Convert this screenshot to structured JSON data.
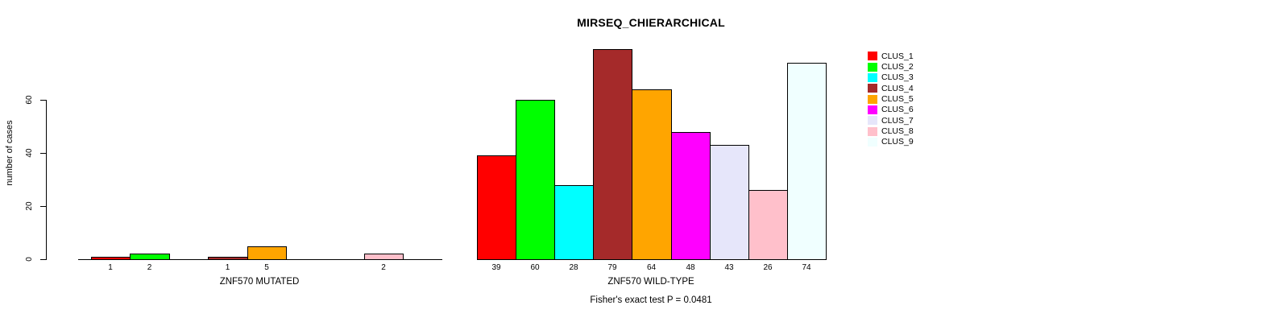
{
  "title": "MIRSEQ_CHIERARCHICAL",
  "ylabel": "number of cases",
  "footer": "Fisher's exact test P = 0.0481",
  "legend": {
    "position": "top-right",
    "entries": [
      {
        "label": "CLUS_1",
        "color": "#FF0000"
      },
      {
        "label": "CLUS_2",
        "color": "#00FF00"
      },
      {
        "label": "CLUS_3",
        "color": "#00FFFF"
      },
      {
        "label": "CLUS_4",
        "color": "#A52A2A"
      },
      {
        "label": "CLUS_5",
        "color": "#FFA500"
      },
      {
        "label": "CLUS_6",
        "color": "#FF00FF"
      },
      {
        "label": "CLUS_7",
        "color": "#E6E6FA"
      },
      {
        "label": "CLUS_8",
        "color": "#FFC0CB"
      },
      {
        "label": "CLUS_9",
        "color": "#F0FFFF"
      }
    ]
  },
  "chart_data": [
    {
      "type": "bar",
      "xlabel": "ZNF570 MUTATED",
      "ylabel": "number of cases",
      "categories": [
        "CLUS_1",
        "CLUS_2",
        "CLUS_3",
        "CLUS_4",
        "CLUS_5",
        "CLUS_6",
        "CLUS_7",
        "CLUS_8",
        "CLUS_9"
      ],
      "values": [
        1,
        2,
        0,
        1,
        5,
        0,
        0,
        2,
        0
      ],
      "bar_labels": [
        "1",
        "2",
        "",
        "1",
        "5",
        "",
        "",
        "2",
        ""
      ],
      "yticks": [
        0,
        20,
        40,
        60
      ],
      "ylim": [
        0,
        60
      ],
      "grid": false
    },
    {
      "type": "bar",
      "xlabel": "ZNF570 WILD-TYPE",
      "ylabel": "number of cases",
      "categories": [
        "CLUS_1",
        "CLUS_2",
        "CLUS_3",
        "CLUS_4",
        "CLUS_5",
        "CLUS_6",
        "CLUS_7",
        "CLUS_8",
        "CLUS_9"
      ],
      "values": [
        39,
        60,
        28,
        79,
        64,
        48,
        43,
        26,
        74
      ],
      "bar_labels": [
        "39",
        "60",
        "28",
        "79",
        "64",
        "48",
        "43",
        "26",
        "74"
      ],
      "ylim": [
        0,
        60
      ],
      "grid": false
    }
  ]
}
